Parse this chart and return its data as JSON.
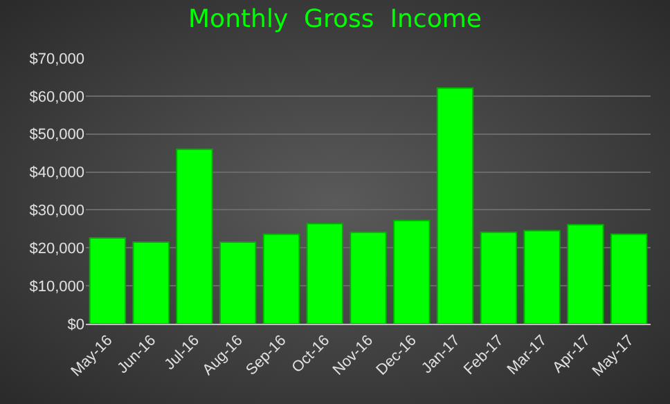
{
  "chart_data": {
    "type": "bar",
    "title": "Monthly  Gross  Income",
    "categories": [
      "May-16",
      "Jun-16",
      "Jul-16",
      "Aug-16",
      "Sep-16",
      "Oct-16",
      "Nov-16",
      "Dec-16",
      "Jan-17",
      "Feb-17",
      "Mar-17",
      "Apr-17",
      "May-17"
    ],
    "values": [
      22600,
      21500,
      46000,
      21500,
      23600,
      26400,
      24100,
      27200,
      62100,
      24100,
      24500,
      26100,
      23600
    ],
    "color": "#00ff00",
    "ylim": [
      0,
      70000
    ],
    "yticks": [
      {
        "value": 0,
        "label": "$0"
      },
      {
        "value": 10000,
        "label": "$10,000"
      },
      {
        "value": 20000,
        "label": "$20,000"
      },
      {
        "value": 30000,
        "label": "$30,000"
      },
      {
        "value": 40000,
        "label": "$40,000"
      },
      {
        "value": 50000,
        "label": "$50,000"
      },
      {
        "value": 60000,
        "label": "$60,000"
      },
      {
        "value": 70000,
        "label": "$70,000"
      }
    ],
    "grid": "y"
  }
}
